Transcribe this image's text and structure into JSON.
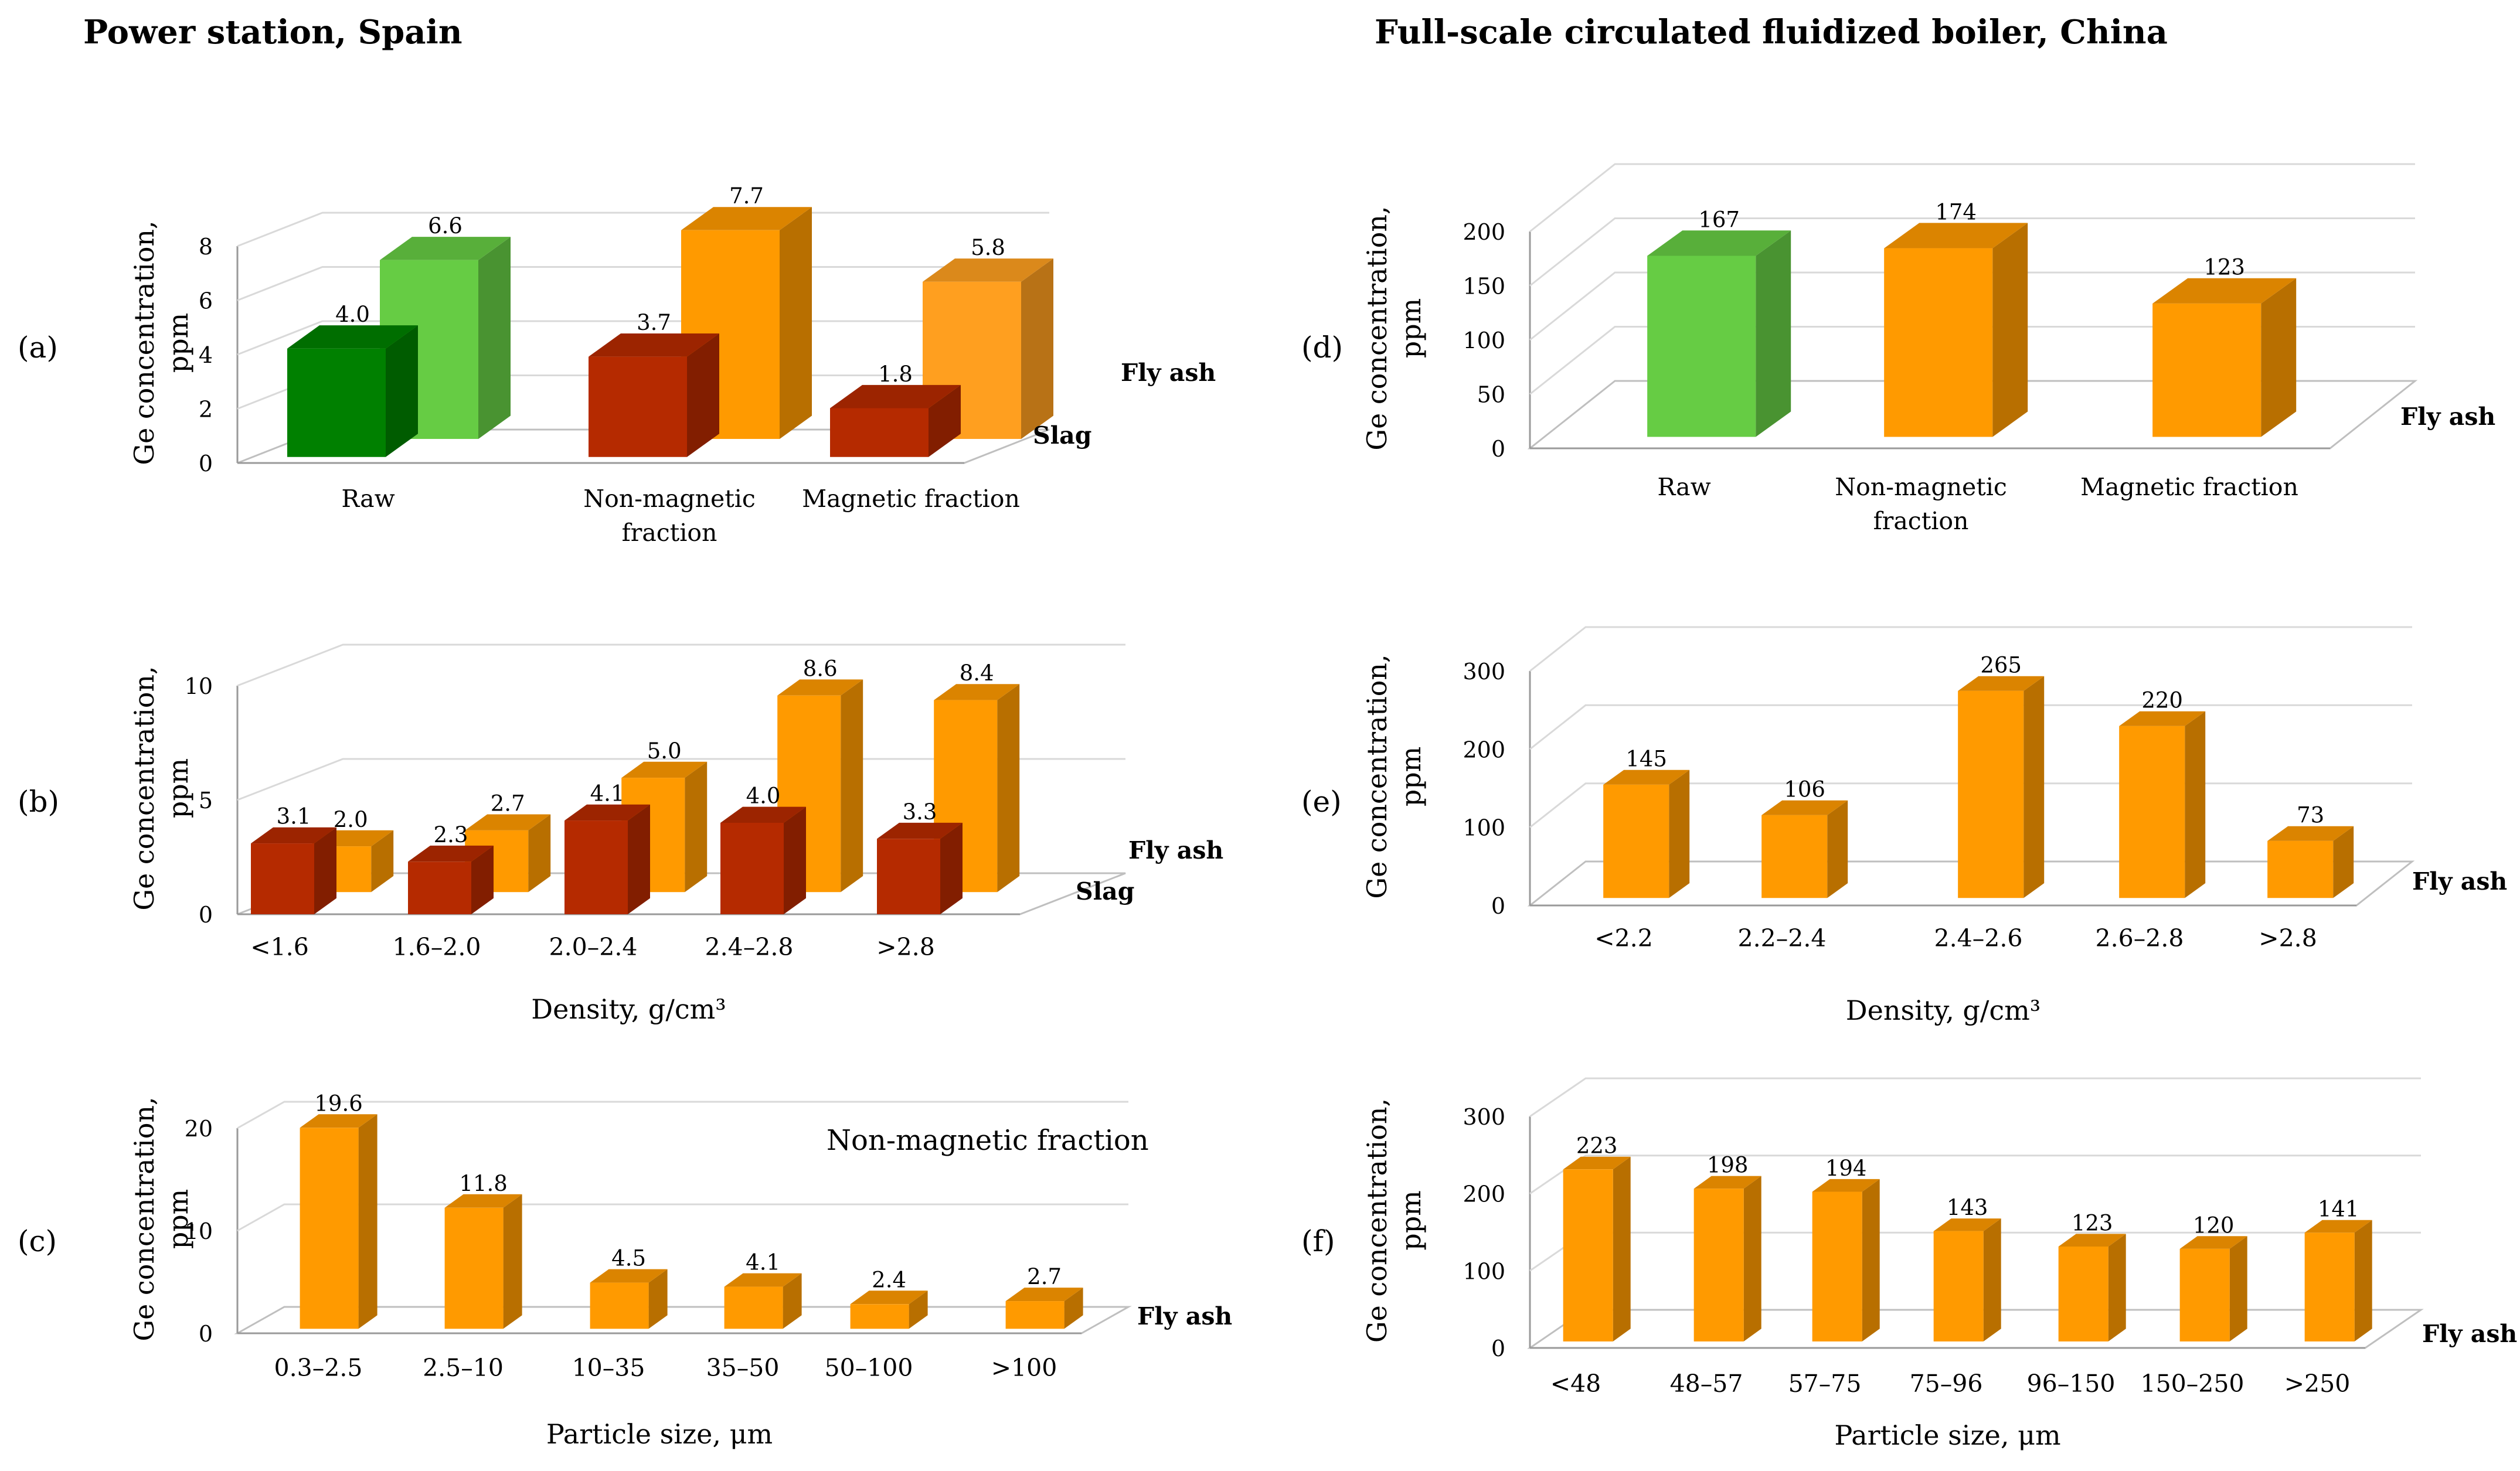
{
  "headings": {
    "left": "Power station, Spain",
    "right": "Full-scale circulated fluidized boiler, China"
  },
  "colors": {
    "orange": "#FF9A00",
    "light_orange": "#FF9F1F",
    "slag_red": "#B52A00",
    "green_light": "#66CC44",
    "green_dark": "#008000",
    "grid": "#d9d9d9"
  },
  "chart_data": [
    {
      "id": "a",
      "panel_label": "(a)",
      "type": "bar",
      "ylabel_line1": "Ge concentration,",
      "ylabel_line2": "ppm",
      "ylim": [
        0,
        8
      ],
      "yticks": [
        0,
        2,
        4,
        6,
        8
      ],
      "categories": [
        "Raw",
        "Non-magnetic fraction",
        "Magnetic fraction"
      ],
      "category_lines": [
        [
          "Raw"
        ],
        [
          "Non-magnetic",
          "fraction"
        ],
        [
          "Magnetic fraction"
        ]
      ],
      "series": [
        {
          "name": "Slag",
          "values": [
            4.0,
            3.7,
            1.8
          ],
          "labels": [
            "4.0",
            "3.7",
            "1.8"
          ],
          "colors": [
            "green_dark",
            "slag_red",
            "slag_red"
          ]
        },
        {
          "name": "Fly ash",
          "values": [
            6.6,
            7.7,
            5.8
          ],
          "labels": [
            "6.6",
            "7.7",
            "5.8"
          ],
          "colors": [
            "green_light",
            "orange",
            "light_orange"
          ]
        }
      ],
      "xlabel": "",
      "annotation": ""
    },
    {
      "id": "b",
      "panel_label": "(b)",
      "type": "bar",
      "ylabel_line1": "Ge concentration,",
      "ylabel_line2": "ppm",
      "ylim": [
        0,
        10
      ],
      "yticks": [
        0,
        5,
        10
      ],
      "categories": [
        "<1.6",
        "1.6–2.0",
        "2.0–2.4",
        "2.4–2.8",
        ">2.8"
      ],
      "series": [
        {
          "name": "Slag",
          "values": [
            3.1,
            2.3,
            4.1,
            4.0,
            3.3
          ],
          "labels": [
            "3.1",
            "2.3",
            "4.1",
            "4.0",
            "3.3"
          ],
          "colors": [
            "slag_red"
          ]
        },
        {
          "name": "Fly ash",
          "values": [
            2.0,
            2.7,
            5.0,
            8.6,
            8.4
          ],
          "labels": [
            "2.0",
            "2.7",
            "5.0",
            "8.6",
            "8.4"
          ],
          "colors": [
            "orange"
          ]
        }
      ],
      "xlabel": "Density, g/cm³",
      "annotation": ""
    },
    {
      "id": "c",
      "panel_label": "(c)",
      "type": "bar",
      "ylabel_line1": "Ge concentration,",
      "ylabel_line2": "ppm",
      "ylim": [
        0,
        20
      ],
      "yticks": [
        0,
        10,
        20
      ],
      "categories": [
        "0.3–2.5",
        "2.5–10",
        "10–35",
        "35–50",
        "50–100",
        ">100"
      ],
      "series": [
        {
          "name": "Fly ash",
          "values": [
            19.6,
            11.8,
            4.5,
            4.1,
            2.4,
            2.7
          ],
          "labels": [
            "19.6",
            "11.8",
            "4.5",
            "4.1",
            "2.4",
            "2.7"
          ],
          "colors": [
            "orange"
          ]
        }
      ],
      "xlabel": "Particle size, μm",
      "annotation": "Non-magnetic fraction"
    },
    {
      "id": "d",
      "panel_label": "(d)",
      "type": "bar",
      "ylabel_line1": "Ge concentration,",
      "ylabel_line2": "ppm",
      "ylim": [
        0,
        200
      ],
      "yticks": [
        0,
        50,
        100,
        150,
        200
      ],
      "categories": [
        "Raw",
        "Non-magnetic fraction",
        "Magnetic fraction"
      ],
      "category_lines": [
        [
          "Raw"
        ],
        [
          "Non-magnetic",
          "fraction"
        ],
        [
          "Magnetic fraction"
        ]
      ],
      "series": [
        {
          "name": "Fly ash",
          "values": [
            167,
            174,
            123
          ],
          "labels": [
            "167",
            "174",
            "123"
          ],
          "colors": [
            "green_light",
            "orange",
            "orange"
          ]
        }
      ],
      "xlabel": "",
      "annotation": ""
    },
    {
      "id": "e",
      "panel_label": "(e)",
      "type": "bar",
      "ylabel_line1": "Ge concentration,",
      "ylabel_line2": "ppm",
      "ylim": [
        0,
        300
      ],
      "yticks": [
        0,
        100,
        200,
        300
      ],
      "categories": [
        "<2.2",
        "2.2–2.4",
        "2.4–2.6",
        "2.6–2.8",
        ">2.8"
      ],
      "series": [
        {
          "name": "Fly ash",
          "values": [
            145,
            106,
            265,
            220,
            73
          ],
          "labels": [
            "145",
            "106",
            "265",
            "220",
            "73"
          ],
          "colors": [
            "orange"
          ]
        }
      ],
      "xlabel": "Density, g/cm³",
      "annotation": ""
    },
    {
      "id": "f",
      "panel_label": "(f)",
      "type": "bar",
      "ylabel_line1": "Ge concentration,",
      "ylabel_line2": "ppm",
      "ylim": [
        0,
        300
      ],
      "yticks": [
        0,
        100,
        200,
        300
      ],
      "categories": [
        "<48",
        "48–57",
        "57–75",
        "75–96",
        "96–150",
        "150–250",
        ">250"
      ],
      "series": [
        {
          "name": "Fly ash",
          "values": [
            223,
            198,
            194,
            143,
            123,
            120,
            141
          ],
          "labels": [
            "223",
            "198",
            "194",
            "143",
            "123",
            "120",
            "141"
          ],
          "colors": [
            "orange"
          ]
        }
      ],
      "xlabel": "Particle size, μm",
      "annotation": ""
    }
  ]
}
